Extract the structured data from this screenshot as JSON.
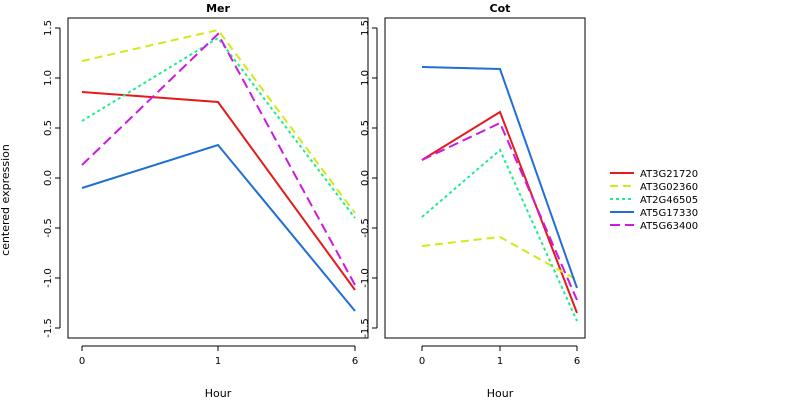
{
  "chart_data": {
    "type": "line",
    "ylabel": "centered expression",
    "xlabel": "Hour",
    "x_tick_labels": [
      "0",
      "1",
      "6"
    ],
    "y_ticks": [
      -1.5,
      -1.0,
      -0.5,
      0.0,
      0.5,
      1.0,
      1.5
    ],
    "y_tick_labels": [
      "-1.5",
      "-1.0",
      "-0.5",
      "0.0",
      "0.5",
      "1.0",
      "1.5"
    ],
    "legend_placement": "right",
    "grid": false,
    "series_styles": [
      {
        "name": "AT3G21720",
        "color": "#e41a1c",
        "dash": "solid"
      },
      {
        "name": "AT3G02360",
        "color": "#d4e81a",
        "dash": "dashed"
      },
      {
        "name": "AT2G46505",
        "color": "#1aee8a",
        "dash": "dotted"
      },
      {
        "name": "AT5G17330",
        "color": "#1f6fd6",
        "dash": "solid"
      },
      {
        "name": "AT5G63400",
        "color": "#cc1ae0",
        "dash": "longdash"
      }
    ],
    "panels": [
      {
        "title": "Mer",
        "ylim": [
          -1.6,
          1.6
        ],
        "series": [
          {
            "name": "AT3G21720",
            "values": [
              0.86,
              0.76,
              -1.12
            ]
          },
          {
            "name": "AT3G02360",
            "values": [
              1.17,
              1.48,
              -0.35
            ]
          },
          {
            "name": "AT2G46505",
            "values": [
              0.57,
              1.4,
              -0.4
            ]
          },
          {
            "name": "AT5G17330",
            "values": [
              -0.1,
              0.33,
              -1.33
            ]
          },
          {
            "name": "AT5G63400",
            "values": [
              0.13,
              1.44,
              -1.07
            ]
          }
        ]
      },
      {
        "title": "Cot",
        "ylim": [
          -1.6,
          1.6
        ],
        "series": [
          {
            "name": "AT3G21720",
            "values": [
              0.18,
              0.66,
              -1.35
            ]
          },
          {
            "name": "AT3G02360",
            "values": [
              -0.68,
              -0.59,
              -1.02
            ]
          },
          {
            "name": "AT2G46505",
            "values": [
              -0.39,
              0.28,
              -1.43
            ]
          },
          {
            "name": "AT5G17330",
            "values": [
              1.11,
              1.09,
              -1.1
            ]
          },
          {
            "name": "AT5G63400",
            "values": [
              0.18,
              0.55,
              -1.22
            ]
          }
        ]
      }
    ]
  }
}
